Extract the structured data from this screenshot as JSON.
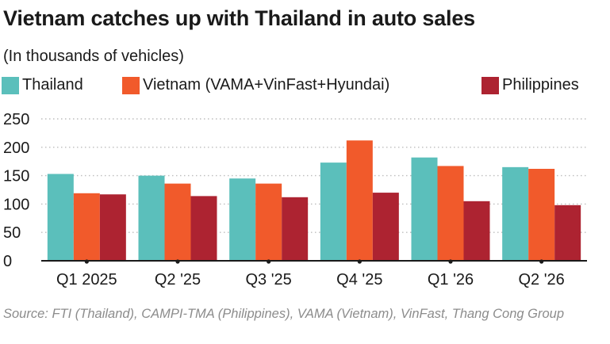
{
  "title": "Vietnam catches up with Thailand in auto sales",
  "subtitle": "(In thousands of vehicles)",
  "source": "Source: FTI (Thailand), CAMPI-TMA (Philippines), VAMA (Vietnam), VinFast, Thang Cong Group",
  "colors": {
    "thailand": "#5bbfbb",
    "vietnam": "#f15a2b",
    "philippines": "#ad2331",
    "grid": "#bdbdbd",
    "axis": "#1a1a1a"
  },
  "chart_data": {
    "type": "bar",
    "title": "Vietnam catches up with Thailand in auto sales",
    "subtitle": "(In thousands of vehicles)",
    "xlabel": "",
    "ylabel": "",
    "ylim": [
      0,
      250
    ],
    "yticks": [
      0,
      50,
      100,
      150,
      200,
      250
    ],
    "grid": true,
    "legend_position": "top",
    "categories": [
      "Q1 2025",
      "Q2 '25",
      "Q3 '25",
      "Q4 '25",
      "Q1 '26",
      "Q2 '26"
    ],
    "series": [
      {
        "name": "Thailand",
        "color": "#5bbfbb",
        "values": [
          153,
          150,
          145,
          173,
          182,
          165
        ]
      },
      {
        "name": "Vietnam (VAMA+VinFast+Hyundai)",
        "color": "#f15a2b",
        "values": [
          119,
          136,
          136,
          212,
          167,
          162
        ]
      },
      {
        "name": "Philippines",
        "color": "#ad2331",
        "values": [
          117,
          114,
          112,
          120,
          105,
          98
        ]
      }
    ]
  }
}
